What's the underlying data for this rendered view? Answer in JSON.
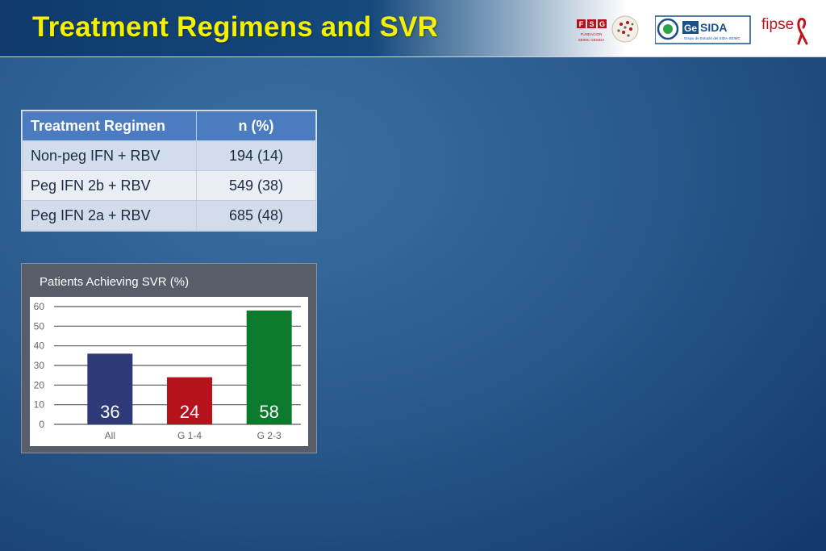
{
  "header": {
    "title": "Treatment Regimens and SVR",
    "logos": [
      "F S G FUNDACION SEIMC GESIDA",
      "GeSIDA",
      "fipse"
    ]
  },
  "table": {
    "headers": [
      "Treatment Regimen",
      "n (%)"
    ],
    "rows": [
      {
        "regimen": "Non-peg IFN + RBV",
        "n": "194 (14)"
      },
      {
        "regimen": "Peg IFN 2b + RBV",
        "n": "549 (38)"
      },
      {
        "regimen": "Peg IFN 2a + RBV",
        "n": "685 (48)"
      }
    ]
  },
  "colors": {
    "header_title": "#f4f000",
    "table_header": "#4a7cbf",
    "bar_all": "#2e3a78",
    "bar_g14": "#b5121b",
    "bar_g23": "#0b7a2c"
  },
  "chart_data": {
    "type": "bar",
    "title": "Patients Achieving SVR (%)",
    "categories": [
      "All",
      "G 1-4",
      "G 2-3"
    ],
    "values": [
      36,
      24,
      58
    ],
    "data_labels": [
      "36",
      "24",
      "58"
    ],
    "colors": [
      "#2e3a78",
      "#b5121b",
      "#0b7a2c"
    ],
    "yticks": [
      "0",
      "10",
      "20",
      "30",
      "40",
      "50",
      "60"
    ],
    "ylim": [
      0,
      60
    ],
    "grid": true
  }
}
